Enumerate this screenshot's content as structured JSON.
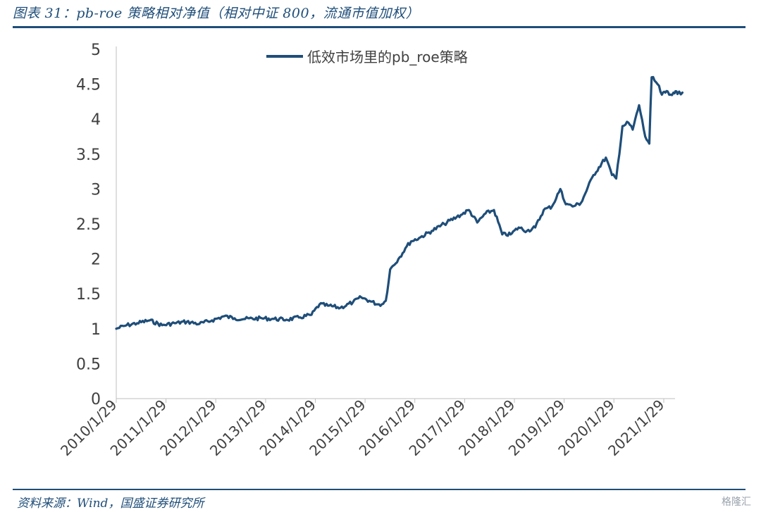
{
  "figure": {
    "title": "图表 31：pb-roe 策略相对净值（相对中证 800，流通市值加权）",
    "source": "资料来源：Wind，国盛证券研究所",
    "watermark": "格隆汇"
  },
  "colors": {
    "line": "#1f4e79",
    "rule": "#1f4e79",
    "axis": "#bfbfbf",
    "text": "#404040"
  },
  "chart_data": {
    "type": "line",
    "title": "",
    "xlabel": "",
    "ylabel": "",
    "ylim": [
      0,
      5
    ],
    "yticks": [
      "0",
      "0.5",
      "1",
      "1.5",
      "2",
      "2.5",
      "3",
      "3.5",
      "4",
      "4.5",
      "5"
    ],
    "xlim": [
      "2010-01-29",
      "2021-06-30"
    ],
    "xticks": [
      "2010/1/29",
      "2011/1/29",
      "2012/1/29",
      "2013/1/29",
      "2014/1/29",
      "2015/1/29",
      "2016/1/29",
      "2017/1/29",
      "2018/1/29",
      "2019/1/29",
      "2020/1/29",
      "2021/1/29"
    ],
    "grid": false,
    "legend": "top-center",
    "series": [
      {
        "name": "低效市场里的pb_roe策略",
        "x": [
          "2010-01-29",
          "2010-04-15",
          "2010-07-01",
          "2010-10-01",
          "2011-01-01",
          "2011-04-01",
          "2011-07-01",
          "2011-10-01",
          "2012-01-01",
          "2012-04-01",
          "2012-06-15",
          "2012-09-01",
          "2013-01-01",
          "2013-04-01",
          "2013-07-01",
          "2013-10-01",
          "2014-01-01",
          "2014-03-01",
          "2014-05-01",
          "2014-08-01",
          "2014-11-01",
          "2015-01-01",
          "2015-03-01",
          "2015-05-01",
          "2015-06-01",
          "2015-06-30",
          "2015-08-01",
          "2015-10-01",
          "2015-12-01",
          "2016-01-01",
          "2016-03-01",
          "2016-06-01",
          "2016-09-01",
          "2016-12-01",
          "2017-01-01",
          "2017-03-01",
          "2017-05-01",
          "2017-07-01",
          "2017-09-01",
          "2017-11-01",
          "2018-01-01",
          "2018-03-01",
          "2018-05-01",
          "2018-07-01",
          "2018-09-01",
          "2018-11-01",
          "2019-01-01",
          "2019-02-01",
          "2019-03-01",
          "2019-04-01",
          "2019-06-01",
          "2019-09-01",
          "2019-12-01",
          "2020-01-15",
          "2020-02-15",
          "2020-04-01",
          "2020-05-15",
          "2020-06-15",
          "2020-08-01",
          "2020-09-15",
          "2020-10-15",
          "2020-11-01",
          "2020-12-15",
          "2021-01-15",
          "2021-02-10",
          "2021-02-25",
          "2021-03-10",
          "2021-04-10",
          "2021-04-25",
          "2021-05-10",
          "2021-06-15"
        ],
        "values": [
          1.0,
          1.05,
          1.08,
          1.12,
          1.05,
          1.08,
          1.1,
          1.07,
          1.12,
          1.18,
          1.15,
          1.14,
          1.15,
          1.14,
          1.13,
          1.16,
          1.2,
          1.35,
          1.33,
          1.3,
          1.38,
          1.45,
          1.4,
          1.35,
          1.35,
          1.4,
          1.85,
          2.0,
          2.18,
          2.25,
          2.3,
          2.4,
          2.5,
          2.6,
          2.63,
          2.7,
          2.52,
          2.65,
          2.7,
          2.35,
          2.35,
          2.45,
          2.4,
          2.45,
          2.7,
          2.75,
          3.0,
          2.82,
          2.78,
          2.75,
          2.8,
          3.2,
          3.45,
          3.2,
          3.15,
          3.9,
          3.95,
          3.85,
          4.2,
          3.75,
          3.65,
          4.6,
          4.5,
          4.35,
          4.38,
          4.4,
          4.35,
          4.38,
          4.4,
          4.36,
          4.38
        ]
      }
    ]
  }
}
